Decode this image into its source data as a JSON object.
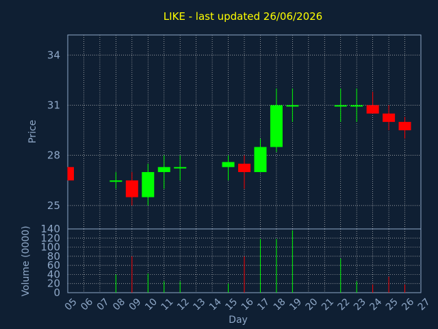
{
  "chart_data": {
    "type": "candlestick",
    "title": "LIKE - last updated 26/06/2026",
    "xlabel": "Day",
    "price": {
      "ylabel": "Price",
      "ylim": [
        23.6,
        35.2
      ],
      "yticks": [
        25,
        28,
        31,
        34
      ],
      "ytick_labels": [
        "25",
        "28",
        "31",
        "34"
      ]
    },
    "volume": {
      "ylabel": "Volume (0000)",
      "ylim": [
        0,
        140
      ],
      "yticks": [
        0,
        20,
        40,
        60,
        80,
        100,
        120,
        140
      ],
      "ytick_labels": [
        "0",
        "20",
        "40",
        "60",
        "80",
        "100",
        "120",
        "140"
      ]
    },
    "x_ticks": [
      "05",
      "06",
      "07",
      "08",
      "09",
      "10",
      "11",
      "12",
      "13",
      "14",
      "15",
      "16",
      "17",
      "18",
      "19",
      "20",
      "21",
      "22",
      "23",
      "24",
      "25",
      "26",
      "27"
    ],
    "grid": true,
    "colors": {
      "up": "#00ff00",
      "down": "#ff0000",
      "title": "#ffff00",
      "axis": "#8fa8c8",
      "background": "#0f1f33"
    },
    "candles": [
      {
        "day": "05",
        "open": 27.3,
        "high": 27.3,
        "low": 26.5,
        "close": 26.5,
        "volume": 0
      },
      {
        "day": "08",
        "open": 26.5,
        "high": 27.0,
        "low": 26.0,
        "close": 26.5,
        "volume": 40
      },
      {
        "day": "09",
        "open": 26.5,
        "high": 27.0,
        "low": 25.0,
        "close": 25.5,
        "volume": 80
      },
      {
        "day": "10",
        "open": 25.5,
        "high": 27.5,
        "low": 25.0,
        "close": 27.0,
        "volume": 42
      },
      {
        "day": "11",
        "open": 27.0,
        "high": 28.0,
        "low": 26.0,
        "close": 27.3,
        "volume": 25
      },
      {
        "day": "12",
        "open": 27.3,
        "high": 28.0,
        "low": 26.5,
        "close": 27.3,
        "volume": 25
      },
      {
        "day": "15",
        "open": 27.3,
        "high": 28.0,
        "low": 26.5,
        "close": 27.6,
        "volume": 20
      },
      {
        "day": "16",
        "open": 27.5,
        "high": 28.0,
        "low": 26.0,
        "close": 27.0,
        "volume": 80
      },
      {
        "day": "17",
        "open": 27.0,
        "high": 29.0,
        "low": 27.0,
        "close": 28.5,
        "volume": 118
      },
      {
        "day": "18",
        "open": 28.5,
        "high": 32.0,
        "low": 28.2,
        "close": 31.0,
        "volume": 118
      },
      {
        "day": "19",
        "open": 31.0,
        "high": 32.0,
        "low": 30.0,
        "close": 31.0,
        "volume": 137
      },
      {
        "day": "22",
        "open": 31.0,
        "high": 32.0,
        "low": 30.0,
        "close": 31.0,
        "volume": 75
      },
      {
        "day": "23",
        "open": 31.0,
        "high": 32.0,
        "low": 30.0,
        "close": 31.0,
        "volume": 25
      },
      {
        "day": "24",
        "open": 31.0,
        "high": 31.8,
        "low": 30.5,
        "close": 30.5,
        "volume": 18
      },
      {
        "day": "25",
        "open": 30.5,
        "high": 31.0,
        "low": 29.5,
        "close": 30.0,
        "volume": 35
      },
      {
        "day": "26",
        "open": 30.0,
        "high": 30.3,
        "low": 29.0,
        "close": 29.5,
        "volume": 18
      }
    ]
  }
}
